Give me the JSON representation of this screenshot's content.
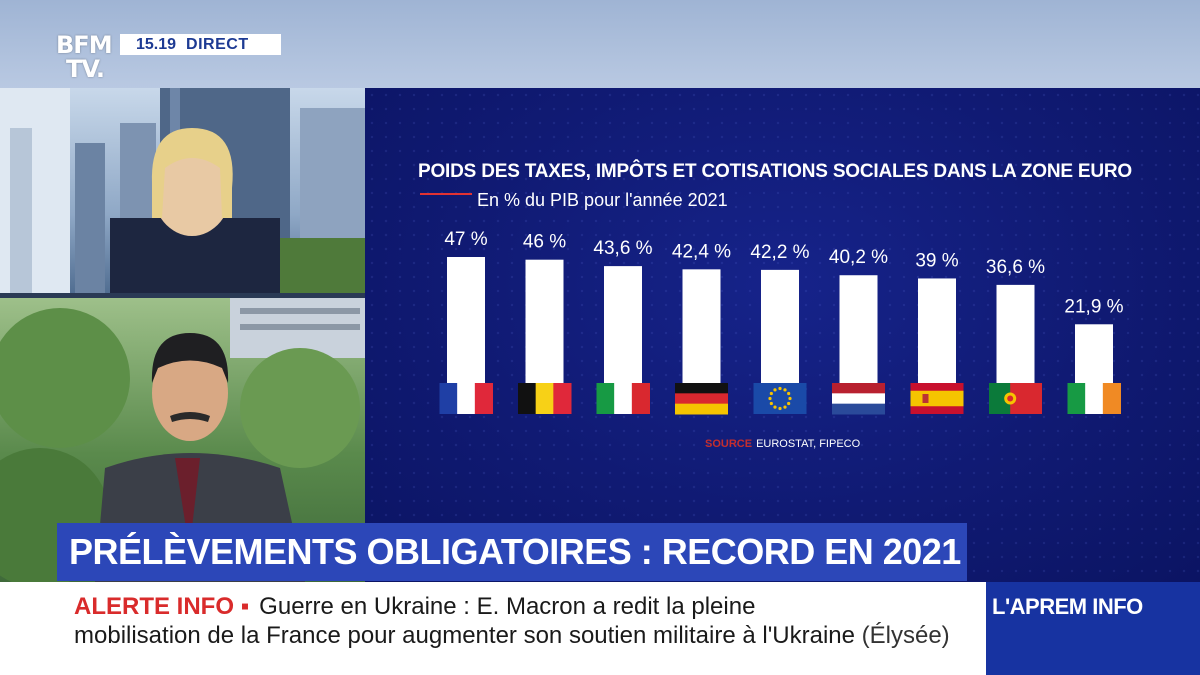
{
  "channel": {
    "logo_line1": "BFM",
    "logo_line2": "TV.",
    "time": "15.19",
    "live_label": "DIRECT"
  },
  "chart_data": {
    "type": "bar",
    "title": "POIDS DES TAXES, IMPÔTS ET COTISATIONS SOCIALES DANS LA ZONE EURO",
    "subtitle": "En % du PIB pour l'année 2021",
    "categories": [
      "France",
      "Belgique",
      "Italie",
      "Allemagne",
      "Zone euro",
      "Pays-Bas",
      "Espagne",
      "Portugal",
      "Irlande"
    ],
    "values": [
      47,
      46,
      43.6,
      42.4,
      42.2,
      40.2,
      39,
      36.6,
      21.9
    ],
    "value_labels": [
      "47 %",
      "46 %",
      "43,6 %",
      "42,4 %",
      "42,2 %",
      "40,2 %",
      "39 %",
      "36,6 %",
      "21,9 %"
    ],
    "flags": [
      "france-flag-icon",
      "belgium-flag-icon",
      "italy-flag-icon",
      "germany-flag-icon",
      "eu-flag-icon",
      "netherlands-flag-icon",
      "spain-flag-icon",
      "portugal-flag-icon",
      "ireland-flag-icon"
    ],
    "source_label": "SOURCE",
    "source_text": "EUROSTAT, FIPECO",
    "ylim": [
      0,
      47
    ],
    "bar_color": "#ffffff",
    "accent_color": "#e23232"
  },
  "headline": "PRÉLÈVEMENTS OBLIGATOIRES : RECORD EN 2021",
  "ticker": {
    "alert_label": "ALERTE INFO ▪",
    "line1": "Guerre en Ukraine : E. Macron a redit la pleine",
    "line2": "mobilisation de la France pour augmenter son soutien militaire à l'Ukraine",
    "line2_source": "(Élysée)"
  },
  "show_name": "L'APREM INFO"
}
